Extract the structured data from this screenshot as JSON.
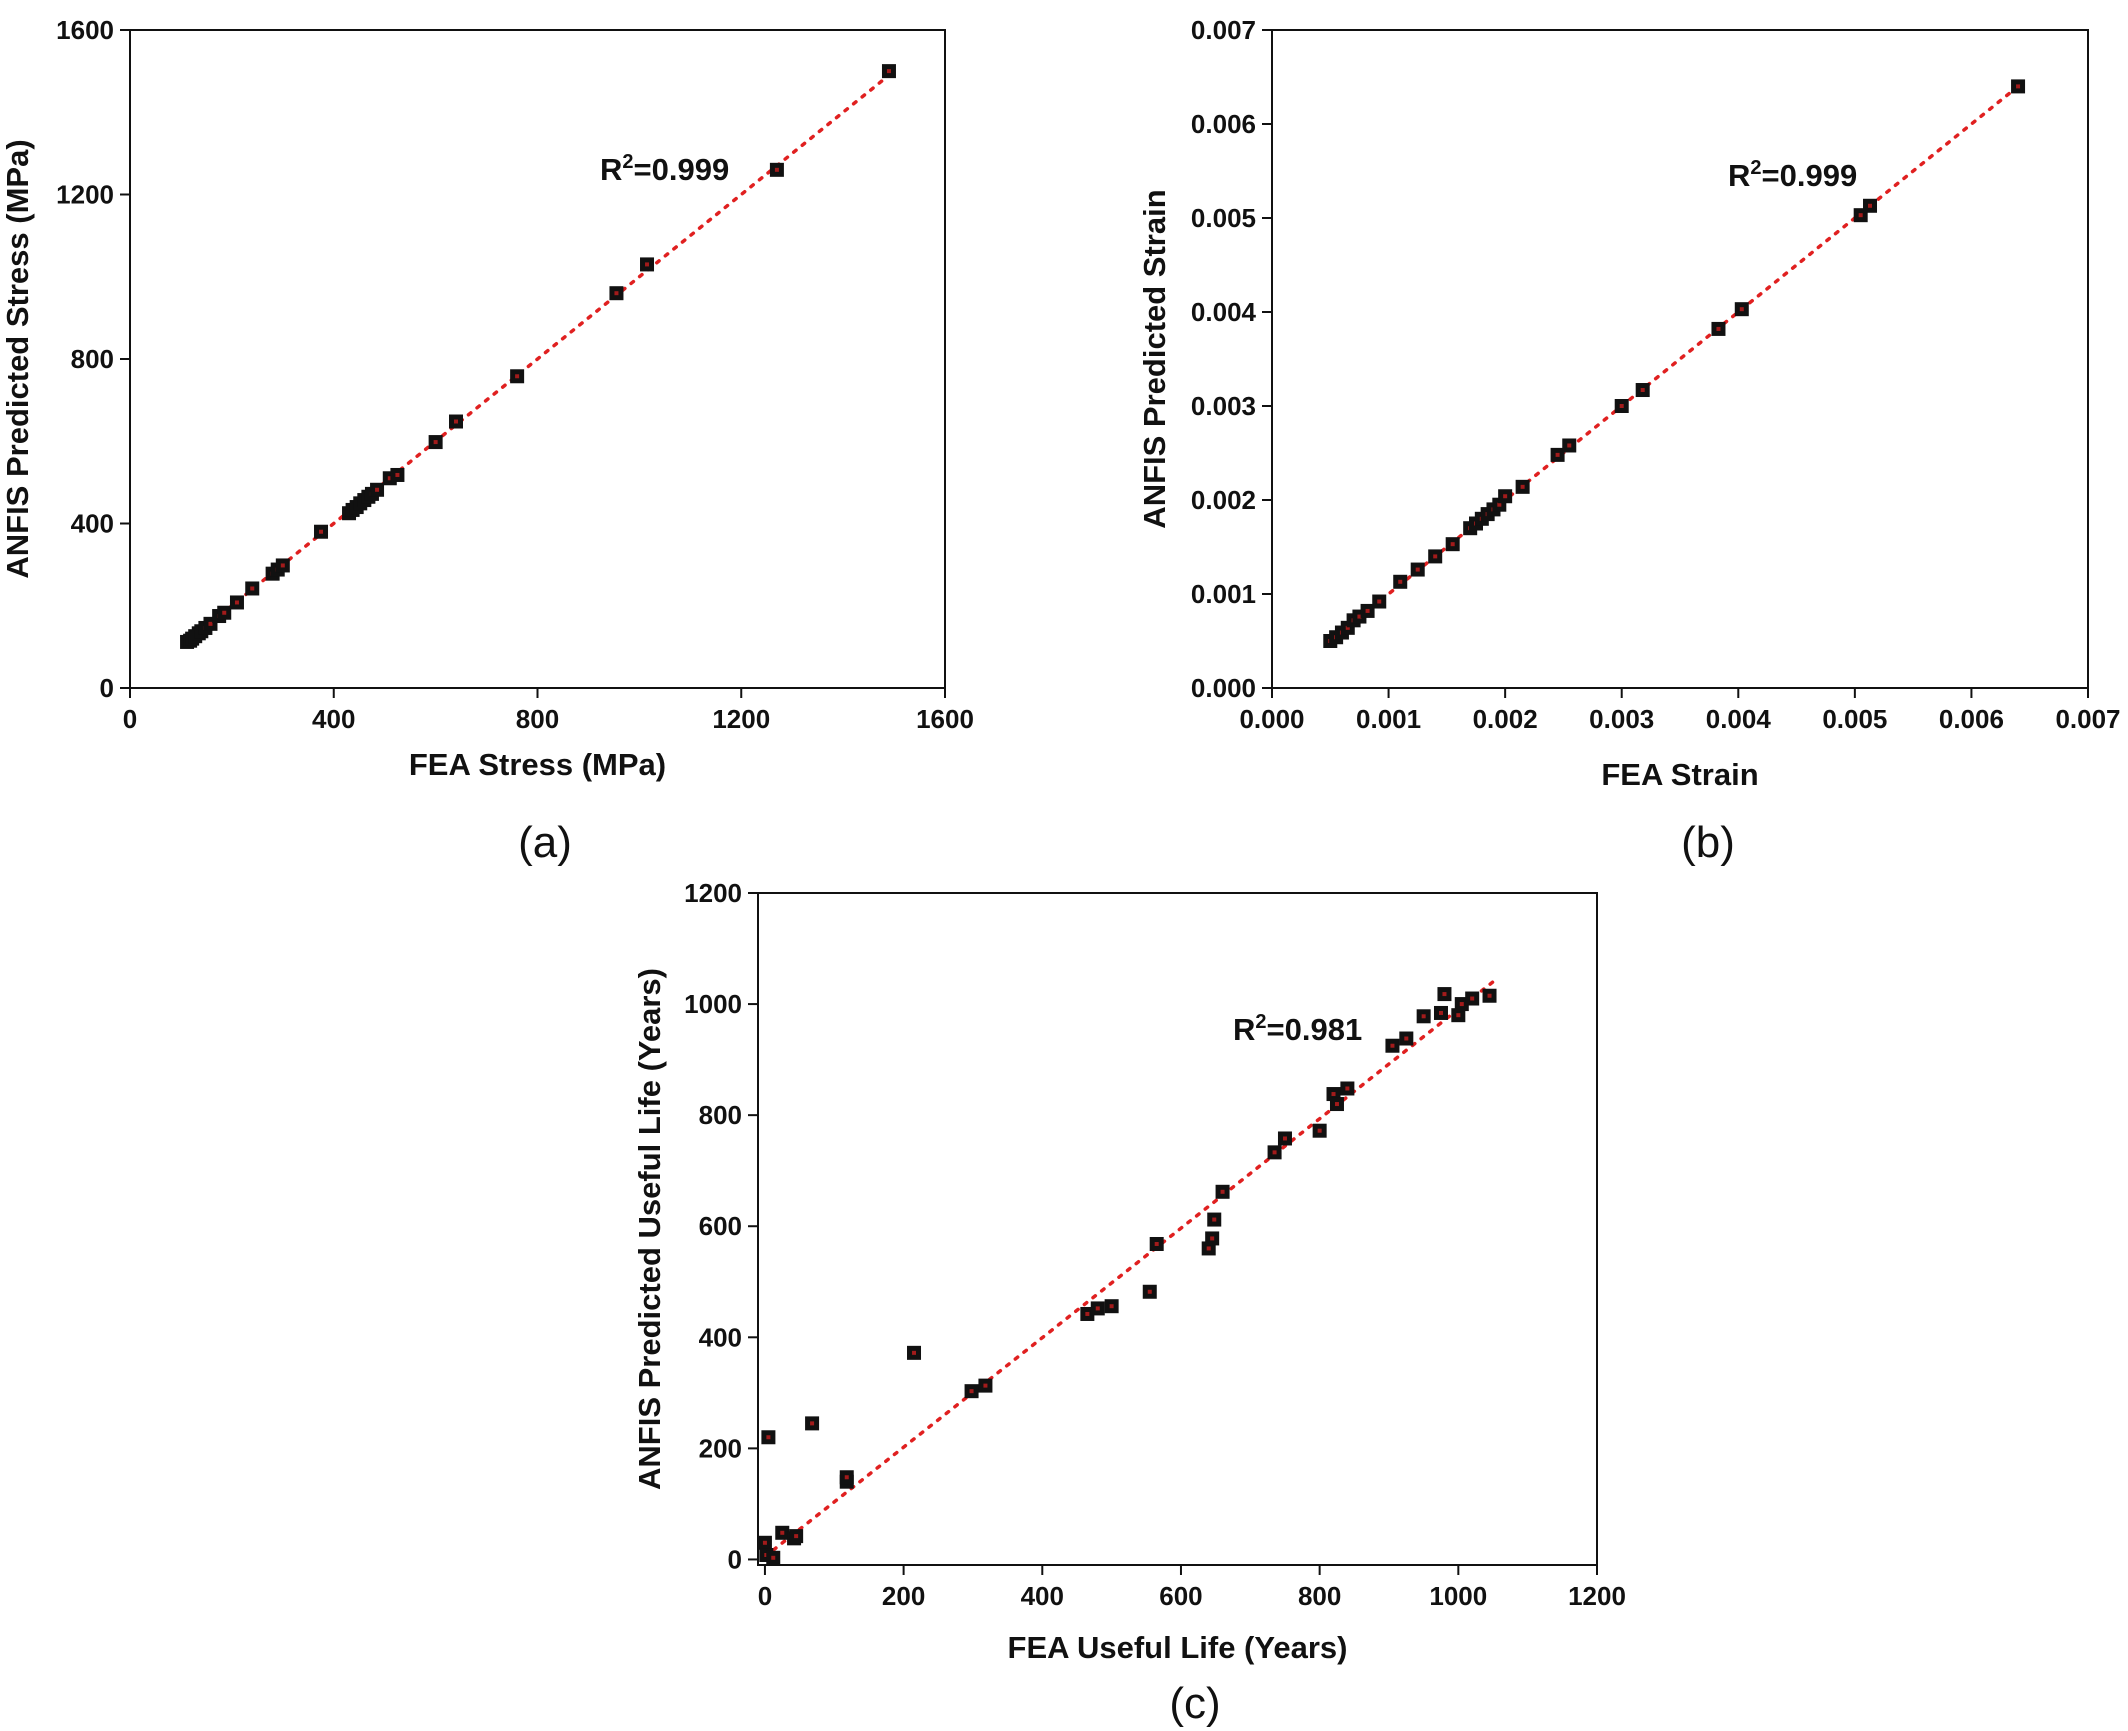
{
  "chart_data": [
    {
      "type": "scatter",
      "panel_label": "(a)",
      "xlabel": "FEA Stress (MPa)",
      "ylabel": "ANFIS Predicted Stress (MPa)",
      "xlim": [
        0,
        1600
      ],
      "ylim": [
        0,
        1600
      ],
      "xticks": [
        0,
        400,
        800,
        1200,
        1600
      ],
      "yticks": [
        0,
        400,
        800,
        1200,
        1600
      ],
      "xtick_labels": [
        "0",
        "400",
        "800",
        "1200",
        "1600"
      ],
      "ytick_labels": [
        "0",
        "400",
        "800",
        "1200",
        "1600"
      ],
      "annotation": {
        "base": "R",
        "sup": "2",
        "rest": "=0.999"
      },
      "fit_line": [
        [
          110,
          110
        ],
        [
          1490,
          1490
        ]
      ],
      "marker_color": "#111111",
      "fit_color": "#e02020",
      "grid": false,
      "points": [
        [
          112,
          112
        ],
        [
          118,
          115
        ],
        [
          122,
          120
        ],
        [
          128,
          126
        ],
        [
          135,
          133
        ],
        [
          140,
          138
        ],
        [
          148,
          146
        ],
        [
          158,
          156
        ],
        [
          175,
          175
        ],
        [
          185,
          183
        ],
        [
          210,
          208
        ],
        [
          240,
          242
        ],
        [
          280,
          278
        ],
        [
          290,
          288
        ],
        [
          300,
          298
        ],
        [
          375,
          380
        ],
        [
          430,
          425
        ],
        [
          437,
          433
        ],
        [
          445,
          440
        ],
        [
          452,
          449
        ],
        [
          460,
          457
        ],
        [
          468,
          465
        ],
        [
          475,
          472
        ],
        [
          485,
          482
        ],
        [
          510,
          510
        ],
        [
          525,
          518
        ],
        [
          600,
          598
        ],
        [
          640,
          648
        ],
        [
          760,
          758
        ],
        [
          955,
          960
        ],
        [
          1015,
          1030
        ],
        [
          1270,
          1260
        ],
        [
          1490,
          1500
        ]
      ]
    },
    {
      "type": "scatter",
      "panel_label": "(b)",
      "xlabel": "FEA Strain",
      "ylabel": "ANFIS Predicted Strain",
      "xlim": [
        0,
        0.007
      ],
      "ylim": [
        0,
        0.007
      ],
      "xticks": [
        0,
        0.001,
        0.002,
        0.003,
        0.004,
        0.005,
        0.006,
        0.007
      ],
      "yticks": [
        0,
        0.001,
        0.002,
        0.003,
        0.004,
        0.005,
        0.006,
        0.007
      ],
      "xtick_labels": [
        "0.000",
        "0.001",
        "0.002",
        "0.003",
        "0.004",
        "0.005",
        "0.006",
        "0.007"
      ],
      "ytick_labels": [
        "0.000",
        "0.001",
        "0.002",
        "0.003",
        "0.004",
        "0.005",
        "0.006",
        "0.007"
      ],
      "annotation": {
        "base": "R",
        "sup": "2",
        "rest": "=0.999"
      },
      "fit_line": [
        [
          0.0005,
          0.0005
        ],
        [
          0.0064,
          0.0064
        ]
      ],
      "marker_color": "#111111",
      "fit_color": "#e02020",
      "grid": false,
      "points": [
        [
          0.0005,
          0.0005
        ],
        [
          0.00055,
          0.00054
        ],
        [
          0.0006,
          0.00059
        ],
        [
          0.00065,
          0.00064
        ],
        [
          0.0007,
          0.00072
        ],
        [
          0.00075,
          0.00076
        ],
        [
          0.00082,
          0.00082
        ],
        [
          0.00092,
          0.00092
        ],
        [
          0.0011,
          0.00113
        ],
        [
          0.00125,
          0.00126
        ],
        [
          0.0014,
          0.0014
        ],
        [
          0.00155,
          0.00153
        ],
        [
          0.0017,
          0.0017
        ],
        [
          0.00175,
          0.00175
        ],
        [
          0.0018,
          0.0018
        ],
        [
          0.00185,
          0.00185
        ],
        [
          0.0019,
          0.0019
        ],
        [
          0.00195,
          0.00195
        ],
        [
          0.002,
          0.00204
        ],
        [
          0.00215,
          0.00214
        ],
        [
          0.00245,
          0.00248
        ],
        [
          0.00255,
          0.00258
        ],
        [
          0.003,
          0.003
        ],
        [
          0.00318,
          0.00317
        ],
        [
          0.00383,
          0.00382
        ],
        [
          0.00403,
          0.00403
        ],
        [
          0.00505,
          0.00503
        ],
        [
          0.00513,
          0.00513
        ],
        [
          0.0064,
          0.0064
        ]
      ]
    },
    {
      "type": "scatter",
      "panel_label": "(c)",
      "xlabel": "FEA Useful Life (Years)",
      "ylabel": "ANFIS Predicted Useful Life (Years)",
      "xlim": [
        -10,
        1200
      ],
      "ylim": [
        -10,
        1200
      ],
      "xticks": [
        0,
        200,
        400,
        600,
        800,
        1000,
        1200
      ],
      "yticks": [
        0,
        200,
        400,
        600,
        800,
        1000,
        1200
      ],
      "xtick_labels": [
        "0",
        "200",
        "400",
        "600",
        "800",
        "1000",
        "1200"
      ],
      "ytick_labels": [
        "0",
        "200",
        "400",
        "600",
        "800",
        "1000",
        "1200"
      ],
      "annotation": {
        "base": "R",
        "sup": "2",
        "rest": "=0.981"
      },
      "fit_line": [
        [
          0,
          5
        ],
        [
          1050,
          1040
        ]
      ],
      "marker_color": "#111111",
      "fit_color": "#e02020",
      "grid": false,
      "points": [
        [
          0,
          30
        ],
        [
          2,
          8
        ],
        [
          5,
          220
        ],
        [
          12,
          3
        ],
        [
          25,
          48
        ],
        [
          42,
          38
        ],
        [
          45,
          42
        ],
        [
          68,
          245
        ],
        [
          118,
          140
        ],
        [
          118,
          148
        ],
        [
          215,
          372
        ],
        [
          298,
          303
        ],
        [
          318,
          313
        ],
        [
          465,
          442
        ],
        [
          480,
          452
        ],
        [
          500,
          456
        ],
        [
          555,
          482
        ],
        [
          565,
          568
        ],
        [
          640,
          560
        ],
        [
          645,
          578
        ],
        [
          648,
          612
        ],
        [
          660,
          662
        ],
        [
          735,
          733
        ],
        [
          750,
          758
        ],
        [
          800,
          772
        ],
        [
          820,
          838
        ],
        [
          825,
          820
        ],
        [
          840,
          848
        ],
        [
          905,
          925
        ],
        [
          925,
          938
        ],
        [
          950,
          978
        ],
        [
          975,
          984
        ],
        [
          980,
          1018
        ],
        [
          1000,
          980
        ],
        [
          1005,
          1000
        ],
        [
          1020,
          1010
        ],
        [
          1045,
          1015
        ]
      ]
    }
  ]
}
